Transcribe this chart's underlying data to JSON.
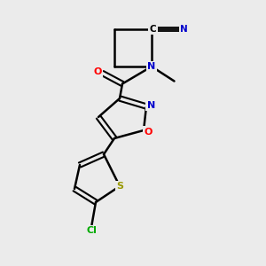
{
  "background_color": "#ebebeb",
  "atom_colors": {
    "C": "#000000",
    "N": "#0000cc",
    "O": "#ff0000",
    "S": "#999900",
    "Cl": "#00aa00"
  },
  "bond_color": "#000000",
  "bond_width": 1.8,
  "figsize": [
    3.0,
    3.0
  ],
  "dpi": 100
}
